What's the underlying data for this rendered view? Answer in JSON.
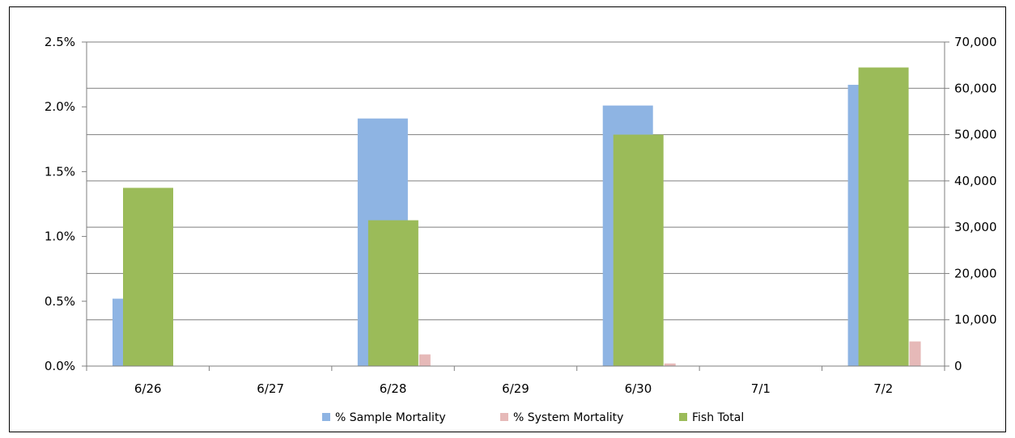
{
  "chart_data": {
    "type": "bar",
    "categories": [
      "6/26",
      "6/27",
      "6/28",
      "6/29",
      "6/30",
      "7/1",
      "7/2"
    ],
    "series": [
      {
        "name": "% Sample Mortality",
        "axis": "left",
        "unit": "%",
        "color": "#8eb4e3",
        "values": [
          0.52,
          null,
          1.91,
          null,
          2.01,
          null,
          2.17
        ]
      },
      {
        "name": "% System Mortality",
        "axis": "left",
        "unit": "%",
        "color": "#e6b9b8",
        "values": [
          0.0,
          null,
          0.09,
          null,
          0.02,
          null,
          0.19
        ]
      },
      {
        "name": "Fish Total",
        "axis": "right",
        "unit": "count",
        "color": "#9bbb59",
        "values": [
          38500,
          null,
          31500,
          null,
          50000,
          null,
          64500
        ]
      }
    ],
    "left_axis": {
      "min": 0,
      "max": 2.5,
      "step": 0.5,
      "tick_labels": [
        "0.0%",
        "0.5%",
        "1.0%",
        "1.5%",
        "2.0%",
        "2.5%"
      ]
    },
    "right_axis": {
      "min": 0,
      "max": 70000,
      "step": 10000,
      "tick_labels": [
        "0",
        "10,000",
        "20,000",
        "30,000",
        "40,000",
        "50,000",
        "60,000",
        "70,000"
      ]
    },
    "grid": true,
    "legend_position": "bottom"
  }
}
